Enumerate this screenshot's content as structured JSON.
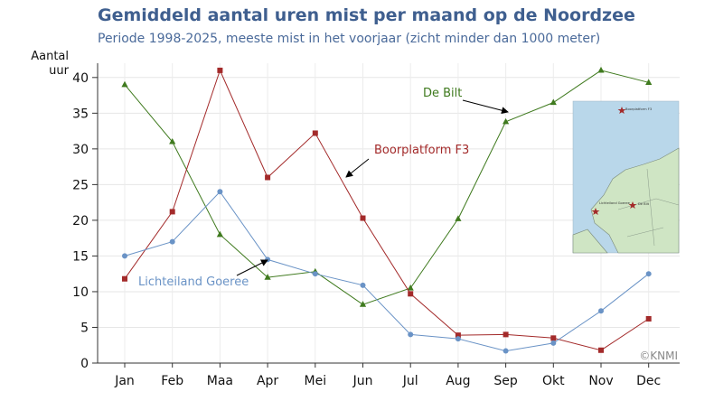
{
  "chart_data": {
    "type": "line",
    "title": "Gemiddeld aantal uren mist per maand op de Noordzee",
    "subtitle": "Periode 1998-2025, meeste mist in het voorjaar (zicht minder dan 1000 meter)",
    "ylabel_line1": "Aantal",
    "ylabel_line2": "uur",
    "xlabel": "",
    "categories": [
      "Jan",
      "Feb",
      "Maa",
      "Apr",
      "Mei",
      "Jun",
      "Jul",
      "Aug",
      "Sep",
      "Okt",
      "Nov",
      "Dec"
    ],
    "ylim": [
      0,
      42
    ],
    "yticks": [
      0,
      5,
      10,
      15,
      20,
      25,
      30,
      35,
      40
    ],
    "grid": true,
    "series": [
      {
        "name": "De Bilt",
        "color": "#3f7a1e",
        "marker": "triangle",
        "values": [
          39.0,
          31.0,
          18.0,
          12.0,
          12.8,
          8.2,
          10.5,
          20.2,
          33.8,
          36.5,
          41.0,
          39.3
        ]
      },
      {
        "name": "Boorplatform F3",
        "color": "#a32a2a",
        "marker": "square",
        "values": [
          11.8,
          21.2,
          41.0,
          26.0,
          32.2,
          20.3,
          9.7,
          3.9,
          4.0,
          3.5,
          1.8,
          6.2
        ]
      },
      {
        "name": "Lichteiland Goeree",
        "color": "#6a93c6",
        "marker": "circle",
        "values": [
          15.0,
          17.0,
          24.0,
          14.5,
          12.5,
          10.9,
          4.0,
          3.4,
          1.7,
          2.8,
          7.3,
          12.5
        ]
      }
    ],
    "annotations": [
      "De Bilt",
      "Boorplatform F3",
      "Lichteiland Goeree"
    ],
    "credit": "©KNMI"
  },
  "map": {
    "label_f3": "Boorplatform F3",
    "label_goeree": "Lichteiland Goeree",
    "label_bilt": "De Bilt",
    "sea_color": "#b9d7ea",
    "land_color": "#cfe5c4"
  }
}
